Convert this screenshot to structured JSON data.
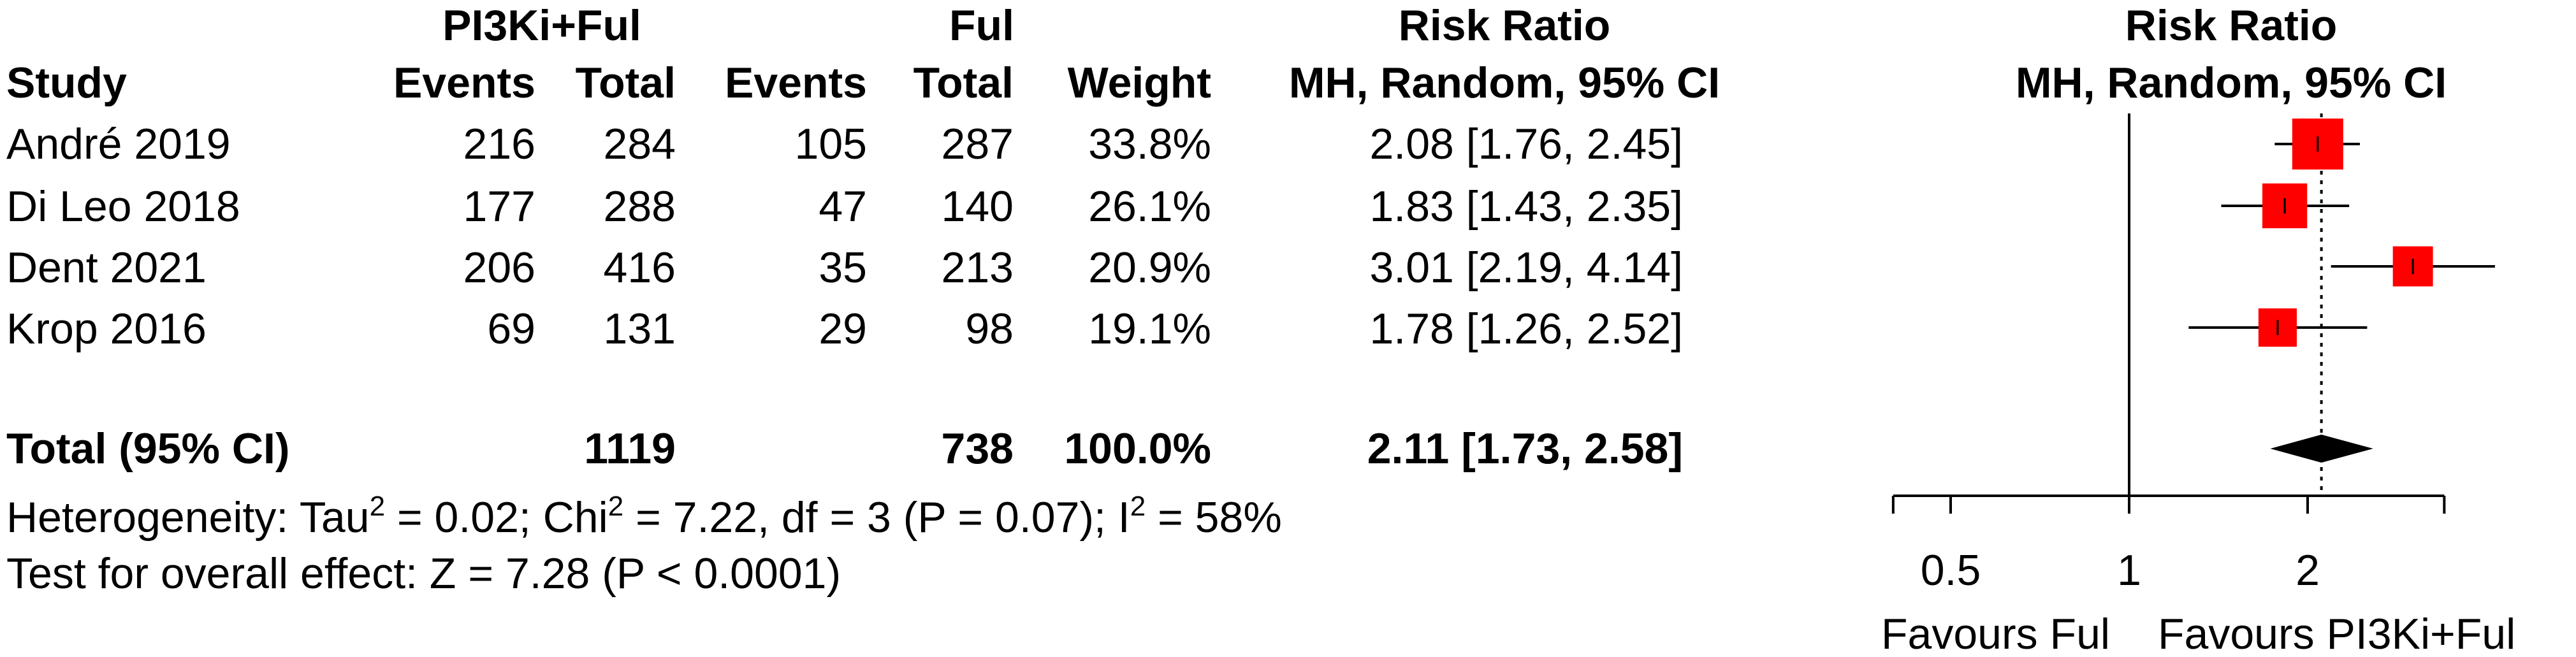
{
  "headers": {
    "group1": "PI3Ki+Ful",
    "group2": "Ful",
    "study": "Study",
    "events": "Events",
    "total": "Total",
    "weight": "Weight",
    "rr_title": "Risk Ratio",
    "rr_method": "MH, Random, 95% CI"
  },
  "studies": [
    {
      "name": "André 2019",
      "e1": "216",
      "t1": "284",
      "e2": "105",
      "t2": "287",
      "weight": "33.8%",
      "rr_text": "2.08 [1.76, 2.45]"
    },
    {
      "name": "Di Leo 2018",
      "e1": "177",
      "t1": "288",
      "e2": "47",
      "t2": "140",
      "weight": "26.1%",
      "rr_text": "1.83 [1.43, 2.35]"
    },
    {
      "name": "Dent 2021",
      "e1": "206",
      "t1": "416",
      "e2": "35",
      "t2": "213",
      "weight": "20.9%",
      "rr_text": "3.01 [2.19, 4.14]"
    },
    {
      "name": "Krop 2016",
      "e1": "69",
      "t1": "131",
      "e2": "29",
      "t2": "98",
      "weight": "19.1%",
      "rr_text": "1.78 [1.26, 2.52]"
    }
  ],
  "total": {
    "label": "Total (95% CI)",
    "t1": "1119",
    "t2": "738",
    "weight": "100.0%",
    "rr_text": "2.11 [1.73, 2.58]"
  },
  "heterogeneity": {
    "prefix": "Heterogeneity: Tau",
    "sup1": "2",
    "mid1": " = 0.02; Chi",
    "sup2": "2",
    "mid2": " = 7.22, df = 3 (P = 0.07); I",
    "sup3": "2",
    "suffix": " = 58%"
  },
  "overall_effect": "Test for overall effect: Z = 7.28 (P < 0.0001)",
  "chart_data": {
    "type": "forest",
    "title": "Risk Ratio",
    "subtitle": "MH, Random, 95% CI",
    "scale": "log",
    "xlim": [
      0.4,
      3.4
    ],
    "ticks": [
      0.5,
      1,
      2
    ],
    "tick_labels": [
      "0.5",
      "1",
      "2"
    ],
    "null_value": 1,
    "studies": [
      {
        "name": "André 2019",
        "rr": 2.08,
        "lo": 1.76,
        "hi": 2.45,
        "weight": 33.8
      },
      {
        "name": "Di Leo 2018",
        "rr": 1.83,
        "lo": 1.43,
        "hi": 2.35,
        "weight": 26.1
      },
      {
        "name": "Dent 2021",
        "rr": 3.01,
        "lo": 2.19,
        "hi": 4.14,
        "weight": 20.9
      },
      {
        "name": "Krop 2016",
        "rr": 1.78,
        "lo": 1.26,
        "hi": 2.52,
        "weight": 19.1
      }
    ],
    "pooled": {
      "rr": 2.11,
      "lo": 1.73,
      "hi": 2.58
    },
    "favours_left": "Favours Ful",
    "favours_right": "Favours PI3Ki+Ful",
    "marker_color": "#ff0000"
  }
}
